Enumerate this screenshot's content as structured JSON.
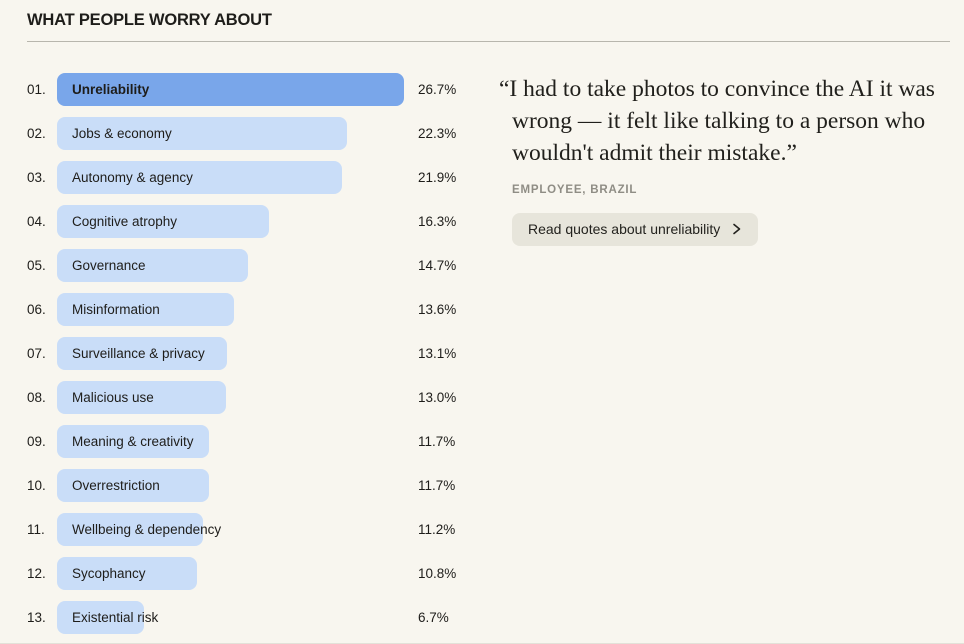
{
  "page": {
    "title": "WHAT PEOPLE WORRY ABOUT",
    "background": "#f8f6ef"
  },
  "chart_data": {
    "type": "bar",
    "orientation": "horizontal",
    "title": "WHAT PEOPLE WORRY ABOUT",
    "categories": [
      "Unreliability",
      "Jobs & economy",
      "Autonomy & agency",
      "Cognitive atrophy",
      "Governance",
      "Misinformation",
      "Surveillance & privacy",
      "Malicious use",
      "Meaning & creativity",
      "Overrestriction",
      "Wellbeing & dependency",
      "Sycophancy",
      "Existential risk"
    ],
    "values": [
      26.7,
      22.3,
      21.9,
      16.3,
      14.7,
      13.6,
      13.1,
      13.0,
      11.7,
      11.7,
      11.2,
      10.8,
      6.7
    ],
    "value_labels": [
      "26.7%",
      "22.3%",
      "21.9%",
      "16.3%",
      "14.7%",
      "13.6%",
      "13.1%",
      "13.0%",
      "11.7%",
      "11.7%",
      "11.2%",
      "10.8%",
      "6.7%"
    ],
    "ranks": [
      "01.",
      "02.",
      "03.",
      "04.",
      "05.",
      "06.",
      "07.",
      "08.",
      "09.",
      "10.",
      "11.",
      "12.",
      "13."
    ],
    "selected_index": 0,
    "xlim": [
      0,
      26.7
    ],
    "grid": false,
    "legend": false,
    "bar_color": "#c9ddf8",
    "selected_bar_color": "#79a6ea"
  },
  "quote": {
    "text": "“I had to take photos to convince the AI it was wrong — it felt like talking to a person who wouldn't admit their mistake.”",
    "attribution": "EMPLOYEE, BRAZIL",
    "button_label": "Read quotes about unreliability"
  }
}
